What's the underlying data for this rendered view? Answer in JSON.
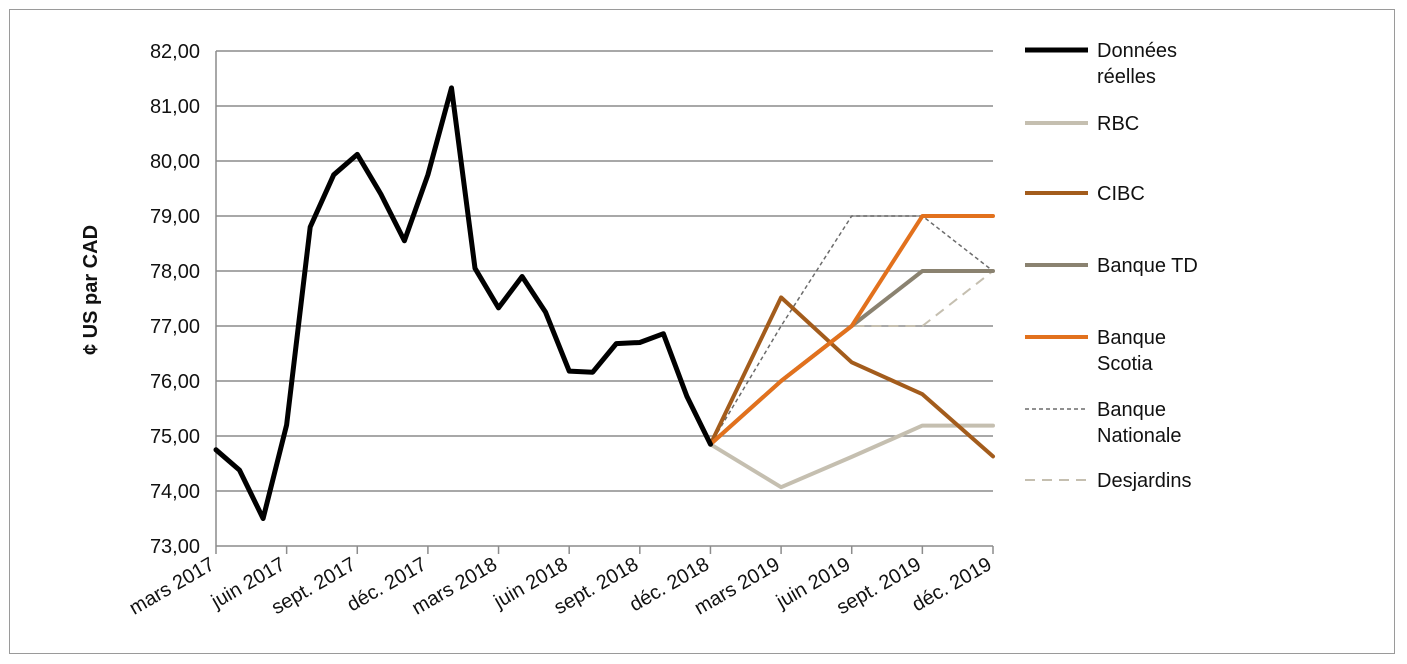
{
  "chart_data": {
    "type": "line",
    "ylabel": "¢ US par CAD",
    "ylim": [
      73,
      82
    ],
    "y_ticks": [
      "73,00",
      "74,00",
      "75,00",
      "76,00",
      "77,00",
      "78,00",
      "79,00",
      "80,00",
      "81,00",
      "82,00"
    ],
    "x_range": [
      "2017-03-01",
      "2019-12-01"
    ],
    "x_ticks": [
      {
        "date": "2017-03-01",
        "label": "mars 2017"
      },
      {
        "date": "2017-06-01",
        "label": "juin 2017"
      },
      {
        "date": "2017-09-01",
        "label": "sept. 2017"
      },
      {
        "date": "2017-12-01",
        "label": "déc. 2017"
      },
      {
        "date": "2018-03-01",
        "label": "mars 2018"
      },
      {
        "date": "2018-06-01",
        "label": "juin 2018"
      },
      {
        "date": "2018-09-01",
        "label": "sept. 2018"
      },
      {
        "date": "2018-12-01",
        "label": "déc. 2018"
      },
      {
        "date": "2019-03-01",
        "label": "mars 2019"
      },
      {
        "date": "2019-06-01",
        "label": "juin 2019"
      },
      {
        "date": "2019-09-01",
        "label": "sept. 2019"
      },
      {
        "date": "2019-12-01",
        "label": "déc. 2019"
      }
    ],
    "grid": "horizontal",
    "legend_position": "right",
    "series": [
      {
        "name": "Données réelles",
        "legend_lines": [
          "Données",
          "réelles"
        ],
        "color": "#000000",
        "dash": "solid",
        "width": 5,
        "points": [
          [
            "2017-03-01",
            74.75
          ],
          [
            "2017-04-01",
            74.38
          ],
          [
            "2017-05-01",
            73.5
          ],
          [
            "2017-06-01",
            75.2
          ],
          [
            "2017-07-01",
            78.8
          ],
          [
            "2017-08-01",
            79.75
          ],
          [
            "2017-09-01",
            80.12
          ],
          [
            "2017-10-01",
            79.4
          ],
          [
            "2017-11-01",
            78.55
          ],
          [
            "2017-12-01",
            79.75
          ],
          [
            "2018-01-01",
            81.33
          ],
          [
            "2018-02-01",
            78.05
          ],
          [
            "2018-03-01",
            77.33
          ],
          [
            "2018-04-01",
            77.9
          ],
          [
            "2018-05-01",
            77.25
          ],
          [
            "2018-06-01",
            76.18
          ],
          [
            "2018-07-01",
            76.16
          ],
          [
            "2018-08-01",
            76.68
          ],
          [
            "2018-09-01",
            76.7
          ],
          [
            "2018-10-01",
            76.86
          ],
          [
            "2018-11-01",
            75.72
          ],
          [
            "2018-12-01",
            74.85
          ]
        ]
      },
      {
        "name": "RBC",
        "legend_lines": [
          "RBC"
        ],
        "color": "#c5bfb0",
        "dash": "solid",
        "width": 4,
        "points": [
          [
            "2018-12-01",
            74.85
          ],
          [
            "2019-03-01",
            74.07
          ],
          [
            "2019-06-01",
            74.62
          ],
          [
            "2019-09-01",
            75.19
          ],
          [
            "2019-12-01",
            75.19
          ]
        ]
      },
      {
        "name": "CIBC",
        "legend_lines": [
          "CIBC"
        ],
        "color": "#a35c1c",
        "dash": "solid",
        "width": 4,
        "points": [
          [
            "2018-12-01",
            74.85
          ],
          [
            "2019-03-01",
            77.52
          ],
          [
            "2019-06-01",
            76.34
          ],
          [
            "2019-09-01",
            75.76
          ],
          [
            "2019-12-01",
            74.63
          ]
        ]
      },
      {
        "name": "Banque TD",
        "legend_lines": [
          "Banque TD"
        ],
        "color": "#8a8270",
        "dash": "solid",
        "width": 4,
        "points": [
          [
            "2018-12-01",
            74.85
          ],
          [
            "2019-03-01",
            76.0
          ],
          [
            "2019-06-01",
            77.0
          ],
          [
            "2019-09-01",
            78.0
          ],
          [
            "2019-12-01",
            78.0
          ]
        ]
      },
      {
        "name": "Banque Scotia",
        "legend_lines": [
          "Banque",
          "Scotia"
        ],
        "color": "#e2711d",
        "dash": "solid",
        "width": 4,
        "points": [
          [
            "2018-12-01",
            74.85
          ],
          [
            "2019-03-01",
            76.0
          ],
          [
            "2019-06-01",
            77.0
          ],
          [
            "2019-09-01",
            79.0
          ],
          [
            "2019-12-01",
            79.0
          ]
        ]
      },
      {
        "name": "Banque Nationale",
        "legend_lines": [
          "Banque",
          "Nationale"
        ],
        "color": "#6b6b6b",
        "dash": "short-dash",
        "width": 1.5,
        "points": [
          [
            "2018-12-01",
            74.85
          ],
          [
            "2019-03-01",
            77.0
          ],
          [
            "2019-06-01",
            79.0
          ],
          [
            "2019-09-01",
            79.0
          ],
          [
            "2019-12-01",
            78.0
          ]
        ]
      },
      {
        "name": "Desjardins",
        "legend_lines": [
          "Desjardins"
        ],
        "color": "#c5bfb0",
        "dash": "long-dash",
        "width": 2,
        "points": [
          [
            "2018-12-01",
            74.85
          ],
          [
            "2019-03-01",
            76.0
          ],
          [
            "2019-06-01",
            77.0
          ],
          [
            "2019-09-01",
            77.0
          ],
          [
            "2019-12-01",
            78.0
          ]
        ]
      }
    ]
  }
}
